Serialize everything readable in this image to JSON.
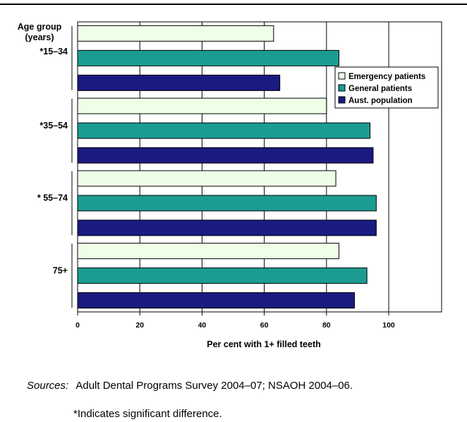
{
  "chart_data": {
    "type": "bar",
    "orientation": "horizontal",
    "y_header": [
      "Age group",
      "(years)"
    ],
    "categories": [
      "*15–34",
      "*35–54",
      "* 55–74",
      "75+"
    ],
    "series": [
      {
        "name": "Emergency patients",
        "color": "#eeffe8",
        "values": [
          63,
          80,
          83,
          84
        ]
      },
      {
        "name": "General patients",
        "color": "#1c9b93",
        "values": [
          84,
          94,
          96,
          93
        ]
      },
      {
        "name": "Aust. population",
        "color": "#1a1a80",
        "values": [
          65,
          95,
          96,
          89
        ]
      }
    ],
    "xlabel": "Per cent with 1+ filled teeth",
    "xlim": [
      0,
      117
    ],
    "xticks": [
      0,
      20,
      40,
      60,
      80,
      100
    ],
    "grid": true,
    "legend_position": "top-right"
  },
  "footer": {
    "sources_label": "Sources:",
    "sources_text": "Adult Dental Programs Survey 2004–07; NSAOH 2004–06.",
    "note": "*Indicates significant difference."
  }
}
